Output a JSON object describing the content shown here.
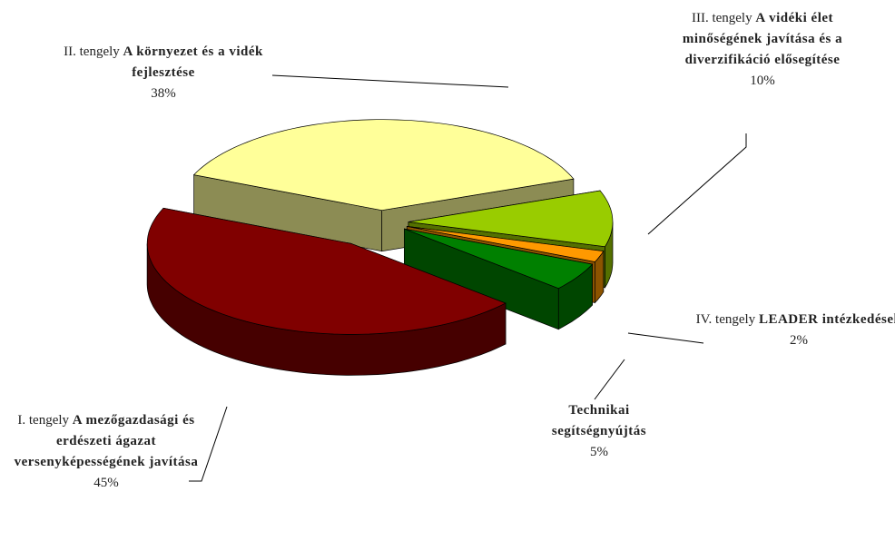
{
  "chart_data": {
    "type": "pie3d",
    "categories": [
      {
        "prefix": "I. tengely",
        "name": "A mezőgazdasági és erdészeti ágazat versenyképességének javítása"
      },
      {
        "prefix": "II. tengely",
        "name": "A környezet és a vidék fejlesztése"
      },
      {
        "prefix": "III. tengely",
        "name": "A vidéki élet minőségének javítása és a diverzifikáció elősegítése"
      },
      {
        "prefix": "IV. tengely",
        "name": "LEADER intézkedések"
      },
      {
        "name": "Technikai segítségnyújtás"
      }
    ],
    "values": [
      45,
      38,
      10,
      2,
      5
    ],
    "value_labels": [
      "45%",
      "38%",
      "10%",
      "2%",
      "5%"
    ],
    "colors": [
      "#800000",
      "#ffff99",
      "#99cc00",
      "#ff9900",
      "#008000"
    ]
  }
}
